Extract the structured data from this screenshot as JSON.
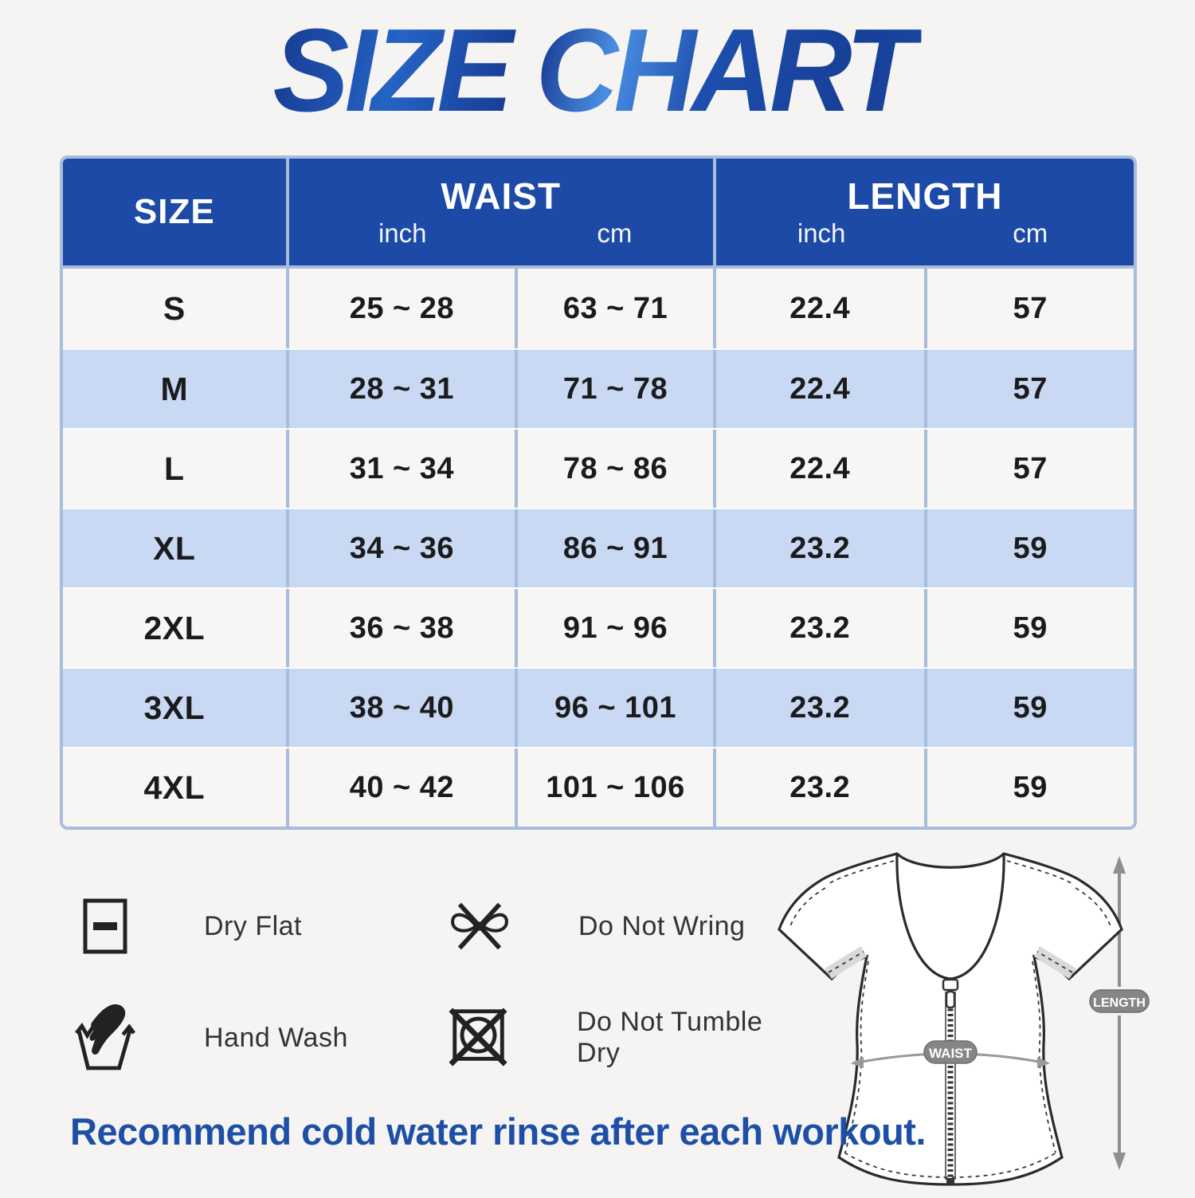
{
  "title": "SIZE CHART",
  "chart_data": {
    "type": "table",
    "title": "SIZE CHART",
    "columns": [
      "SIZE",
      "WAIST (inch)",
      "WAIST (cm)",
      "LENGTH (inch)",
      "LENGTH (cm)"
    ],
    "rows": [
      [
        "S",
        "25 ~ 28",
        "63 ~ 71",
        "22.4",
        "57"
      ],
      [
        "M",
        "28 ~ 31",
        "71 ~ 78",
        "22.4",
        "57"
      ],
      [
        "L",
        "31 ~ 34",
        "78 ~ 86",
        "22.4",
        "57"
      ],
      [
        "XL",
        "34 ~ 36",
        "86 ~ 91",
        "23.2",
        "59"
      ],
      [
        "2XL",
        "36 ~ 38",
        "91 ~ 96",
        "23.2",
        "59"
      ],
      [
        "3XL",
        "38 ~ 40",
        "96 ~ 101",
        "23.2",
        "59"
      ],
      [
        "4XL",
        "40 ~ 42",
        "101 ~ 106",
        "23.2",
        "59"
      ]
    ]
  },
  "table": {
    "header": {
      "size": "SIZE",
      "waist": "WAIST",
      "length": "LENGTH",
      "unit_inch": "inch",
      "unit_cm": "cm"
    },
    "rows": [
      {
        "size": "S",
        "waist_in": "25 ~ 28",
        "waist_cm": "63 ~ 71",
        "len_in": "22.4",
        "len_cm": "57"
      },
      {
        "size": "M",
        "waist_in": "28 ~ 31",
        "waist_cm": "71 ~ 78",
        "len_in": "22.4",
        "len_cm": "57"
      },
      {
        "size": "L",
        "waist_in": "31 ~ 34",
        "waist_cm": "78 ~ 86",
        "len_in": "22.4",
        "len_cm": "57"
      },
      {
        "size": "XL",
        "waist_in": "34 ~ 36",
        "waist_cm": "86 ~ 91",
        "len_in": "23.2",
        "len_cm": "59"
      },
      {
        "size": "2XL",
        "waist_in": "36 ~ 38",
        "waist_cm": "91 ~ 96",
        "len_in": "23.2",
        "len_cm": "59"
      },
      {
        "size": "3XL",
        "waist_in": "38 ~ 40",
        "waist_cm": "96 ~ 101",
        "len_in": "23.2",
        "len_cm": "59"
      },
      {
        "size": "4XL",
        "waist_in": "40 ~ 42",
        "waist_cm": "101 ~ 106",
        "len_in": "23.2",
        "len_cm": "59"
      }
    ]
  },
  "care": {
    "items": [
      {
        "icon": "dry-flat-icon",
        "label": "Dry Flat"
      },
      {
        "icon": "do-not-wring-icon",
        "label": "Do Not Wring"
      },
      {
        "icon": "hand-wash-icon",
        "label": "Hand Wash"
      },
      {
        "icon": "do-not-tumble-dry-icon",
        "label": "Do Not Tumble Dry"
      }
    ]
  },
  "diagram": {
    "waist_label": "WAIST",
    "length_label": "LENGTH"
  },
  "footer": {
    "note": "Recommend cold water rinse after each workout."
  },
  "colors": {
    "header_blue": "#1c4aa6",
    "row_blue": "#c9d9f3",
    "row_white": "#f7f6f4",
    "table_border": "#a8bcdc",
    "title_blue_dark": "#16388f",
    "title_blue_light": "#4a8ee2",
    "accent_text": "#1d4fa6",
    "background": "#f5f4f2",
    "badge_gray": "#868686"
  }
}
